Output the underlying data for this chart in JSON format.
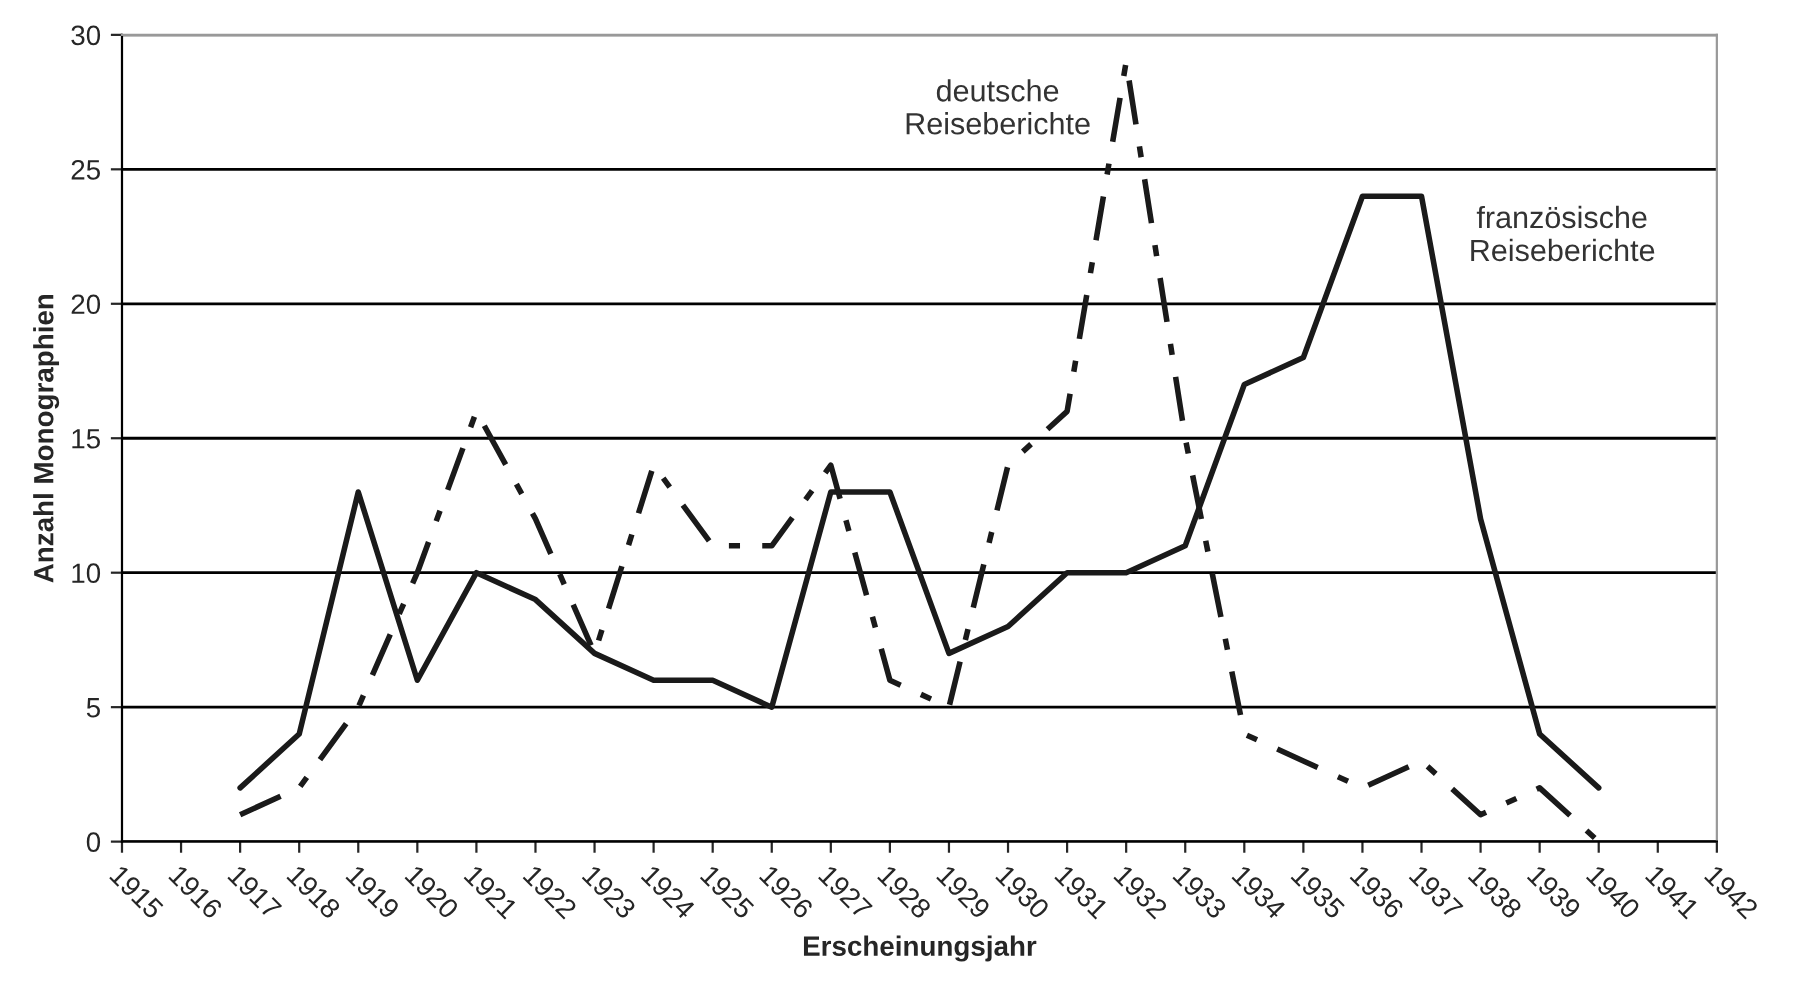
{
  "chart_data": {
    "type": "line",
    "xlabel": "Erscheinungsjahr",
    "ylabel": "Anzahl Monographien",
    "xlim": [
      1915,
      1942
    ],
    "xticks": [
      1915,
      1916,
      1917,
      1918,
      1919,
      1920,
      1921,
      1922,
      1923,
      1924,
      1925,
      1926,
      1927,
      1928,
      1929,
      1930,
      1931,
      1932,
      1933,
      1934,
      1935,
      1936,
      1937,
      1938,
      1939,
      1940,
      1941,
      1942
    ],
    "ylim": [
      0,
      30
    ],
    "yticks": [
      0,
      5,
      10,
      15,
      20,
      25,
      30
    ],
    "grid": "y",
    "legend": false,
    "marker": "none",
    "x": [
      1917,
      1918,
      1919,
      1920,
      1921,
      1922,
      1923,
      1924,
      1925,
      1926,
      1927,
      1928,
      1929,
      1930,
      1931,
      1932,
      1933,
      1934,
      1935,
      1936,
      1937,
      1938,
      1939,
      1940
    ],
    "series": [
      {
        "color": "#1a1a1a",
        "line_style": "solid",
        "values": [
          2,
          4,
          13,
          6,
          10,
          9,
          7,
          6,
          6,
          5,
          13,
          13,
          7,
          8,
          10,
          10,
          11,
          17,
          18,
          24,
          24,
          12,
          4,
          2
        ]
      },
      {
        "color": "#1a1a1a",
        "line_style": "dashed",
        "values": [
          1,
          2,
          5,
          10,
          16,
          12,
          7,
          14,
          11,
          11,
          14,
          6,
          5,
          14,
          16,
          29,
          15,
          4,
          3,
          2,
          3,
          1,
          2,
          0
        ]
      }
    ],
    "annotations": [
      "deutsche\nReiseberichte",
      "französische\nReiseberichte"
    ]
  }
}
